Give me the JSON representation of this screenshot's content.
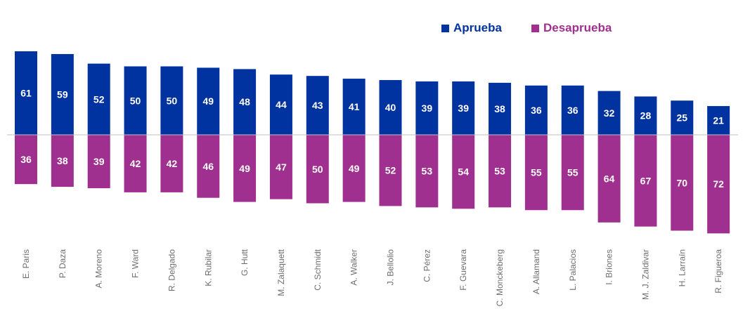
{
  "chart_data": {
    "type": "bar",
    "title": "",
    "xlabel": "",
    "ylabel": "",
    "categories": [
      "E. Paris",
      "P. Daza",
      "A. Moreno",
      "F. Ward",
      "R. Delgado",
      "K. Rubilar",
      "G. Hutt",
      "M. Zalaquett",
      "C. Schmidt",
      "A. Walker",
      "J. Bellolio",
      "C. Pérez",
      "F. Guevara",
      "C. Monckeberg",
      "A. Allamand",
      "L. Palacios",
      "I. Briones",
      "M. J. Zaldivar",
      "H. Larraín",
      "R. Figueroa"
    ],
    "series": [
      {
        "name": "Aprueba",
        "color": "#0033a0",
        "direction": "up",
        "values": [
          61,
          59,
          52,
          50,
          50,
          49,
          48,
          44,
          43,
          41,
          40,
          39,
          39,
          38,
          36,
          36,
          32,
          28,
          25,
          21
        ]
      },
      {
        "name": "Desaprueba",
        "color": "#a0308f",
        "direction": "down",
        "values": [
          36,
          38,
          39,
          42,
          42,
          46,
          49,
          47,
          50,
          49,
          52,
          53,
          54,
          53,
          55,
          55,
          64,
          67,
          70,
          72
        ]
      }
    ],
    "grid": false,
    "legend_position": "top-right",
    "axis_line_color": "#bfbfbf",
    "tick_label_color": "#6e6e6e"
  }
}
